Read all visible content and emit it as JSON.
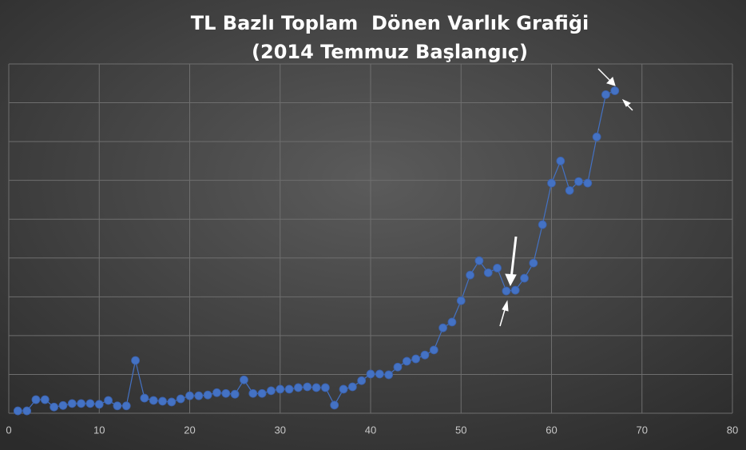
{
  "chart_data": {
    "type": "scatter-line",
    "title": "TL Bazlı Toplam  Dönen Varlık Grafiği",
    "subtitle": "(2014 Temmuz Başlangıç)",
    "x": [
      1,
      2,
      3,
      4,
      5,
      6,
      7,
      8,
      9,
      10,
      11,
      12,
      13,
      14,
      15,
      16,
      17,
      18,
      19,
      20,
      21,
      22,
      23,
      24,
      25,
      26,
      27,
      28,
      29,
      30,
      31,
      32,
      33,
      34,
      35,
      36,
      37,
      38,
      39,
      40,
      41,
      42,
      43,
      44,
      45,
      46,
      47,
      48,
      49,
      50,
      51,
      52,
      53,
      54,
      55,
      56,
      57,
      58,
      59,
      60,
      61,
      62,
      63,
      64,
      65,
      66,
      67
    ],
    "values": [
      0.06,
      0.06,
      0.35,
      0.35,
      0.16,
      0.2,
      0.25,
      0.25,
      0.25,
      0.23,
      0.33,
      0.19,
      0.19,
      1.36,
      0.39,
      0.33,
      0.31,
      0.29,
      0.37,
      0.45,
      0.45,
      0.47,
      0.53,
      0.51,
      0.49,
      0.86,
      0.51,
      0.51,
      0.58,
      0.62,
      0.62,
      0.66,
      0.68,
      0.66,
      0.66,
      0.21,
      0.62,
      0.68,
      0.84,
      1.01,
      1.01,
      0.99,
      1.19,
      1.34,
      1.4,
      1.5,
      1.63,
      2.2,
      2.35,
      2.9,
      3.56,
      3.93,
      3.62,
      3.74,
      3.15,
      3.17,
      3.48,
      3.87,
      4.86,
      5.93,
      6.5,
      5.74,
      5.97,
      5.93,
      7.12,
      8.21,
      8.31
    ],
    "color": "#4472c4",
    "xlim": [
      0,
      80
    ],
    "xticks": [
      0,
      10,
      20,
      30,
      40,
      50,
      60,
      70,
      80
    ],
    "ylim": [
      0,
      9
    ],
    "yticks": [
      0,
      1,
      2,
      3,
      4,
      5,
      6,
      7,
      8,
      9
    ],
    "show_ytick_labels": false,
    "grid": true
  }
}
